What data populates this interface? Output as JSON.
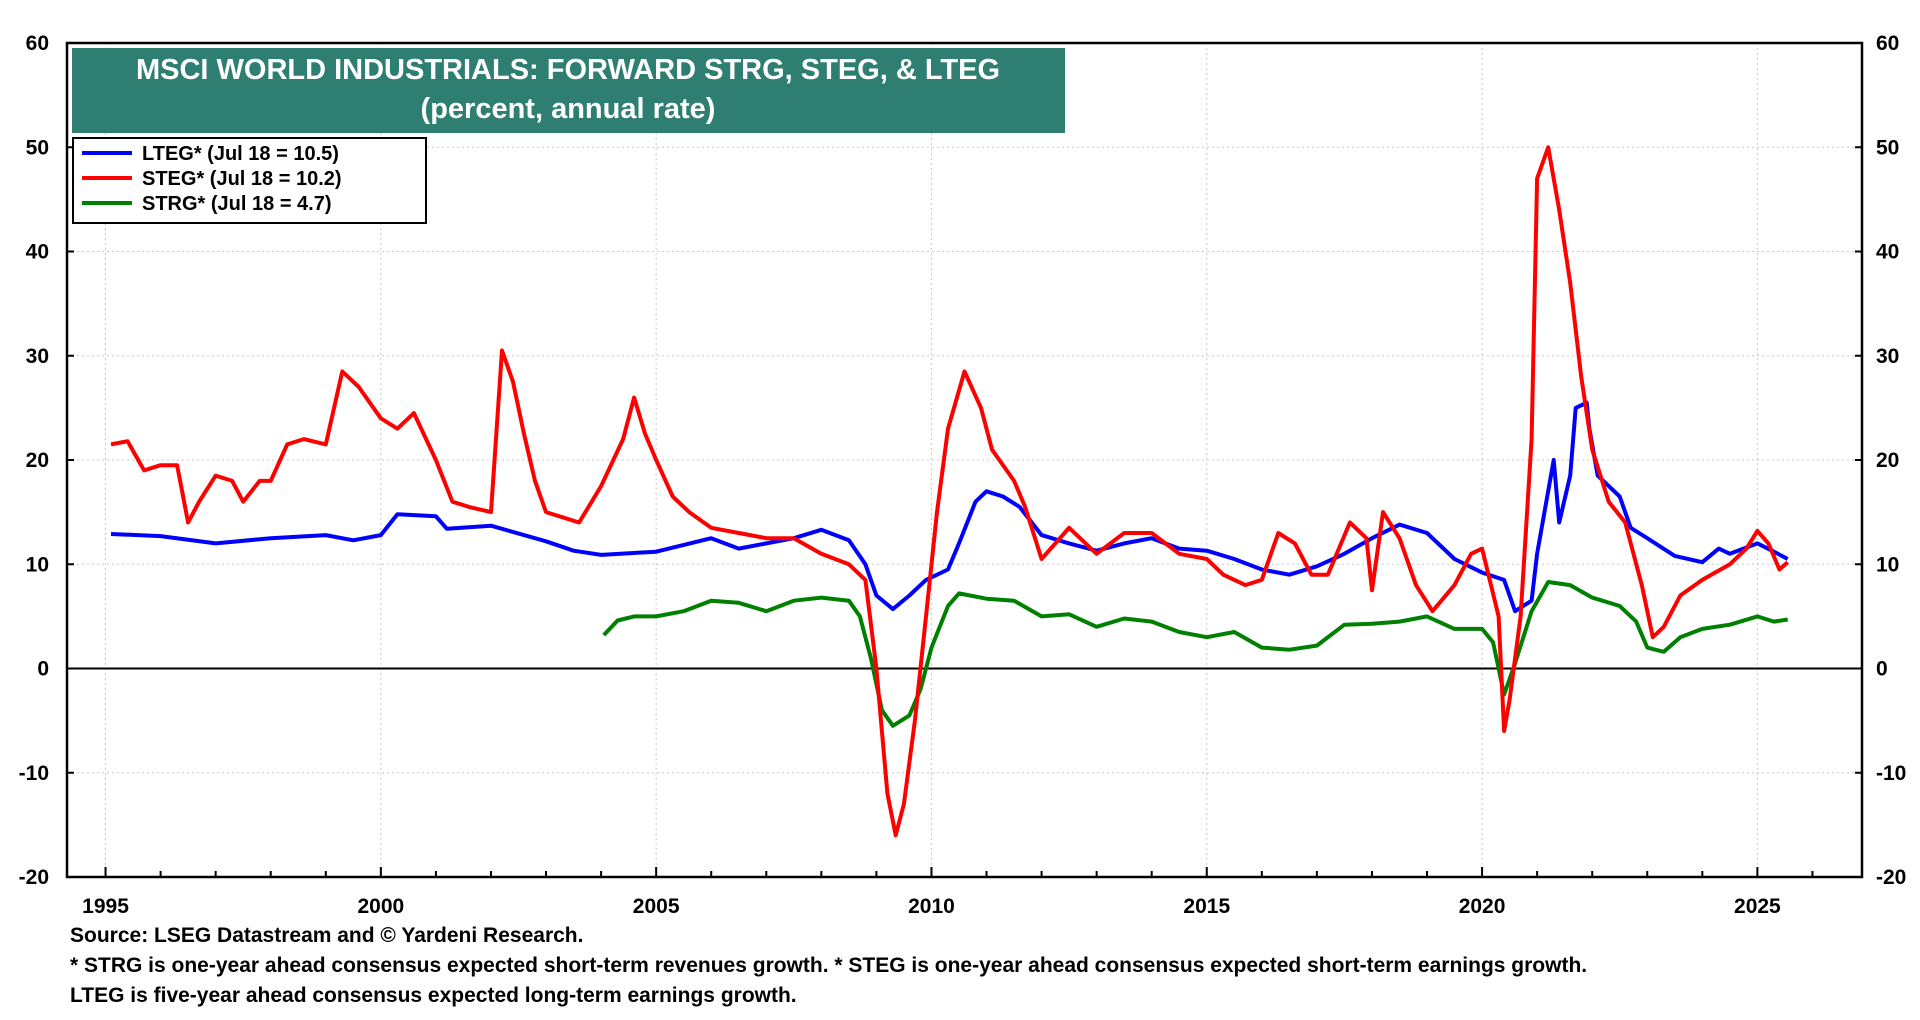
{
  "chart_data": {
    "type": "line",
    "title": "MSCI WORLD INDUSTRIALS: FORWARD STRG, STEG, & LTEG",
    "subtitle": "(percent, annual rate)",
    "xlabel": "",
    "ylabel": "",
    "xlim": [
      1994.3,
      2026.9
    ],
    "ylim": [
      -20,
      60
    ],
    "x_ticks": [
      1995,
      2000,
      2005,
      2010,
      2015,
      2020,
      2025
    ],
    "y_ticks": [
      -20,
      -10,
      0,
      10,
      20,
      30,
      40,
      50,
      60
    ],
    "grid": true,
    "legend_position": "top-left",
    "series": [
      {
        "name": "LTEG* (Jul 18 = 10.5)",
        "color": "#0000ff",
        "points": [
          [
            1995.1,
            12.9
          ],
          [
            1996.0,
            12.7
          ],
          [
            1997.0,
            12.0
          ],
          [
            1998.0,
            12.5
          ],
          [
            1999.0,
            12.8
          ],
          [
            1999.5,
            12.3
          ],
          [
            2000.0,
            12.8
          ],
          [
            2000.3,
            14.8
          ],
          [
            2001.0,
            14.6
          ],
          [
            2001.2,
            13.4
          ],
          [
            2002.0,
            13.7
          ],
          [
            2003.0,
            12.2
          ],
          [
            2003.5,
            11.3
          ],
          [
            2004.0,
            10.9
          ],
          [
            2005.0,
            11.2
          ],
          [
            2006.0,
            12.5
          ],
          [
            2006.5,
            11.5
          ],
          [
            2007.0,
            12.0
          ],
          [
            2007.5,
            12.5
          ],
          [
            2008.0,
            13.3
          ],
          [
            2008.5,
            12.3
          ],
          [
            2008.8,
            10.0
          ],
          [
            2009.0,
            7.0
          ],
          [
            2009.3,
            5.7
          ],
          [
            2009.6,
            7.0
          ],
          [
            2009.9,
            8.5
          ],
          [
            2010.3,
            9.5
          ],
          [
            2010.5,
            12.0
          ],
          [
            2010.8,
            16.0
          ],
          [
            2011.0,
            17.0
          ],
          [
            2011.3,
            16.5
          ],
          [
            2011.6,
            15.5
          ],
          [
            2012.0,
            12.8
          ],
          [
            2012.5,
            12.0
          ],
          [
            2013.0,
            11.3
          ],
          [
            2013.5,
            12.0
          ],
          [
            2014.0,
            12.5
          ],
          [
            2014.5,
            11.5
          ],
          [
            2015.0,
            11.3
          ],
          [
            2015.5,
            10.5
          ],
          [
            2016.0,
            9.5
          ],
          [
            2016.5,
            9.0
          ],
          [
            2017.0,
            9.8
          ],
          [
            2017.5,
            11.0
          ],
          [
            2018.0,
            12.5
          ],
          [
            2018.5,
            13.8
          ],
          [
            2019.0,
            13.0
          ],
          [
            2019.5,
            10.5
          ],
          [
            2020.0,
            9.2
          ],
          [
            2020.4,
            8.5
          ],
          [
            2020.6,
            5.5
          ],
          [
            2020.9,
            6.5
          ],
          [
            2021.0,
            11.0
          ],
          [
            2021.3,
            20.0
          ],
          [
            2021.4,
            14.0
          ],
          [
            2021.6,
            18.5
          ],
          [
            2021.7,
            25.0
          ],
          [
            2021.9,
            25.5
          ],
          [
            2021.95,
            23.0
          ],
          [
            2022.1,
            18.5
          ],
          [
            2022.5,
            16.5
          ],
          [
            2022.7,
            13.5
          ],
          [
            2023.0,
            12.5
          ],
          [
            2023.5,
            10.8
          ],
          [
            2024.0,
            10.2
          ],
          [
            2024.3,
            11.5
          ],
          [
            2024.5,
            11.0
          ],
          [
            2025.0,
            12.0
          ],
          [
            2025.3,
            11.2
          ],
          [
            2025.55,
            10.5
          ]
        ]
      },
      {
        "name": "STEG* (Jul 18 = 10.2)",
        "color": "#ff0000",
        "points": [
          [
            1995.1,
            21.5
          ],
          [
            1995.4,
            21.8
          ],
          [
            1995.7,
            19.0
          ],
          [
            1996.0,
            19.5
          ],
          [
            1996.3,
            19.5
          ],
          [
            1996.5,
            14.0
          ],
          [
            1996.7,
            16.0
          ],
          [
            1997.0,
            18.5
          ],
          [
            1997.3,
            18.0
          ],
          [
            1997.5,
            16.0
          ],
          [
            1997.8,
            18.0
          ],
          [
            1998.0,
            18.0
          ],
          [
            1998.3,
            21.5
          ],
          [
            1998.6,
            22.0
          ],
          [
            1999.0,
            21.5
          ],
          [
            1999.3,
            28.5
          ],
          [
            1999.6,
            27.0
          ],
          [
            2000.0,
            24.0
          ],
          [
            2000.3,
            23.0
          ],
          [
            2000.6,
            24.5
          ],
          [
            2001.0,
            20.0
          ],
          [
            2001.3,
            16.0
          ],
          [
            2001.6,
            15.5
          ],
          [
            2002.0,
            15.0
          ],
          [
            2002.2,
            30.5
          ],
          [
            2002.4,
            27.5
          ],
          [
            2002.6,
            22.5
          ],
          [
            2002.8,
            18.0
          ],
          [
            2003.0,
            15.0
          ],
          [
            2003.3,
            14.5
          ],
          [
            2003.6,
            14.0
          ],
          [
            2004.0,
            17.5
          ],
          [
            2004.4,
            22.0
          ],
          [
            2004.6,
            26.0
          ],
          [
            2004.8,
            22.5
          ],
          [
            2005.0,
            20.0
          ],
          [
            2005.3,
            16.5
          ],
          [
            2005.6,
            15.0
          ],
          [
            2006.0,
            13.5
          ],
          [
            2006.5,
            13.0
          ],
          [
            2007.0,
            12.5
          ],
          [
            2007.5,
            12.5
          ],
          [
            2008.0,
            11.0
          ],
          [
            2008.5,
            10.0
          ],
          [
            2008.8,
            8.5
          ],
          [
            2009.0,
            0.0
          ],
          [
            2009.2,
            -12.0
          ],
          [
            2009.35,
            -16.0
          ],
          [
            2009.5,
            -13.0
          ],
          [
            2009.7,
            -5.0
          ],
          [
            2009.9,
            5.0
          ],
          [
            2010.1,
            15.0
          ],
          [
            2010.3,
            23.0
          ],
          [
            2010.6,
            28.5
          ],
          [
            2010.9,
            25.0
          ],
          [
            2011.1,
            21.0
          ],
          [
            2011.5,
            18.0
          ],
          [
            2011.7,
            15.5
          ],
          [
            2012.0,
            10.5
          ],
          [
            2012.5,
            13.5
          ],
          [
            2013.0,
            11.0
          ],
          [
            2013.5,
            13.0
          ],
          [
            2014.0,
            13.0
          ],
          [
            2014.5,
            11.0
          ],
          [
            2015.0,
            10.5
          ],
          [
            2015.3,
            9.0
          ],
          [
            2015.7,
            8.0
          ],
          [
            2016.0,
            8.5
          ],
          [
            2016.3,
            13.0
          ],
          [
            2016.6,
            12.0
          ],
          [
            2016.9,
            9.0
          ],
          [
            2017.2,
            9.0
          ],
          [
            2017.6,
            14.0
          ],
          [
            2017.9,
            12.5
          ],
          [
            2018.0,
            7.5
          ],
          [
            2018.2,
            15.0
          ],
          [
            2018.5,
            12.5
          ],
          [
            2018.8,
            8.0
          ],
          [
            2019.1,
            5.5
          ],
          [
            2019.5,
            8.0
          ],
          [
            2019.8,
            11.0
          ],
          [
            2020.0,
            11.5
          ],
          [
            2020.3,
            5.0
          ],
          [
            2020.4,
            -6.0
          ],
          [
            2020.5,
            -3.0
          ],
          [
            2020.7,
            5.0
          ],
          [
            2020.9,
            22.0
          ],
          [
            2021.0,
            47.0
          ],
          [
            2021.2,
            50.0
          ],
          [
            2021.4,
            44.0
          ],
          [
            2021.6,
            37.0
          ],
          [
            2021.8,
            28.0
          ],
          [
            2022.0,
            21.0
          ],
          [
            2022.3,
            16.0
          ],
          [
            2022.6,
            14.0
          ],
          [
            2022.9,
            8.0
          ],
          [
            2023.1,
            3.0
          ],
          [
            2023.3,
            4.0
          ],
          [
            2023.6,
            7.0
          ],
          [
            2024.0,
            8.5
          ],
          [
            2024.5,
            10.0
          ],
          [
            2024.8,
            11.5
          ],
          [
            2025.0,
            13.2
          ],
          [
            2025.2,
            12.0
          ],
          [
            2025.4,
            9.5
          ],
          [
            2025.55,
            10.2
          ]
        ]
      },
      {
        "name": "STRG* (Jul 18 = 4.7)",
        "color": "#008000",
        "points": [
          [
            2004.05,
            3.2
          ],
          [
            2004.3,
            4.6
          ],
          [
            2004.6,
            5.0
          ],
          [
            2005.0,
            5.0
          ],
          [
            2005.5,
            5.5
          ],
          [
            2006.0,
            6.5
          ],
          [
            2006.5,
            6.3
          ],
          [
            2007.0,
            5.5
          ],
          [
            2007.5,
            6.5
          ],
          [
            2008.0,
            6.8
          ],
          [
            2008.5,
            6.5
          ],
          [
            2008.7,
            5.0
          ],
          [
            2008.9,
            1.0
          ],
          [
            2009.1,
            -4.0
          ],
          [
            2009.3,
            -5.5
          ],
          [
            2009.6,
            -4.5
          ],
          [
            2009.8,
            -2.0
          ],
          [
            2010.0,
            2.0
          ],
          [
            2010.3,
            6.0
          ],
          [
            2010.5,
            7.2
          ],
          [
            2011.0,
            6.7
          ],
          [
            2011.5,
            6.5
          ],
          [
            2012.0,
            5.0
          ],
          [
            2012.5,
            5.2
          ],
          [
            2013.0,
            4.0
          ],
          [
            2013.5,
            4.8
          ],
          [
            2014.0,
            4.5
          ],
          [
            2014.5,
            3.5
          ],
          [
            2015.0,
            3.0
          ],
          [
            2015.5,
            3.5
          ],
          [
            2016.0,
            2.0
          ],
          [
            2016.5,
            1.8
          ],
          [
            2017.0,
            2.2
          ],
          [
            2017.5,
            4.2
          ],
          [
            2018.0,
            4.3
          ],
          [
            2018.5,
            4.5
          ],
          [
            2019.0,
            5.0
          ],
          [
            2019.5,
            3.8
          ],
          [
            2020.0,
            3.8
          ],
          [
            2020.2,
            2.5
          ],
          [
            2020.4,
            -2.5
          ],
          [
            2020.6,
            0.5
          ],
          [
            2020.9,
            5.5
          ],
          [
            2021.2,
            8.3
          ],
          [
            2021.6,
            8.0
          ],
          [
            2022.0,
            6.8
          ],
          [
            2022.5,
            6.0
          ],
          [
            2022.8,
            4.5
          ],
          [
            2023.0,
            2.0
          ],
          [
            2023.3,
            1.6
          ],
          [
            2023.6,
            3.0
          ],
          [
            2024.0,
            3.8
          ],
          [
            2024.5,
            4.2
          ],
          [
            2025.0,
            5.0
          ],
          [
            2025.3,
            4.5
          ],
          [
            2025.55,
            4.7
          ]
        ]
      }
    ]
  },
  "footer": {
    "source": "Source: LSEG Datastream and © Yardeni Research.",
    "note1": "* STRG is one-year ahead consensus expected short-term revenues growth. * STEG is one-year ahead consensus expected short-term earnings growth.",
    "note2": "LTEG is five-year ahead consensus expected long-term earnings growth."
  }
}
